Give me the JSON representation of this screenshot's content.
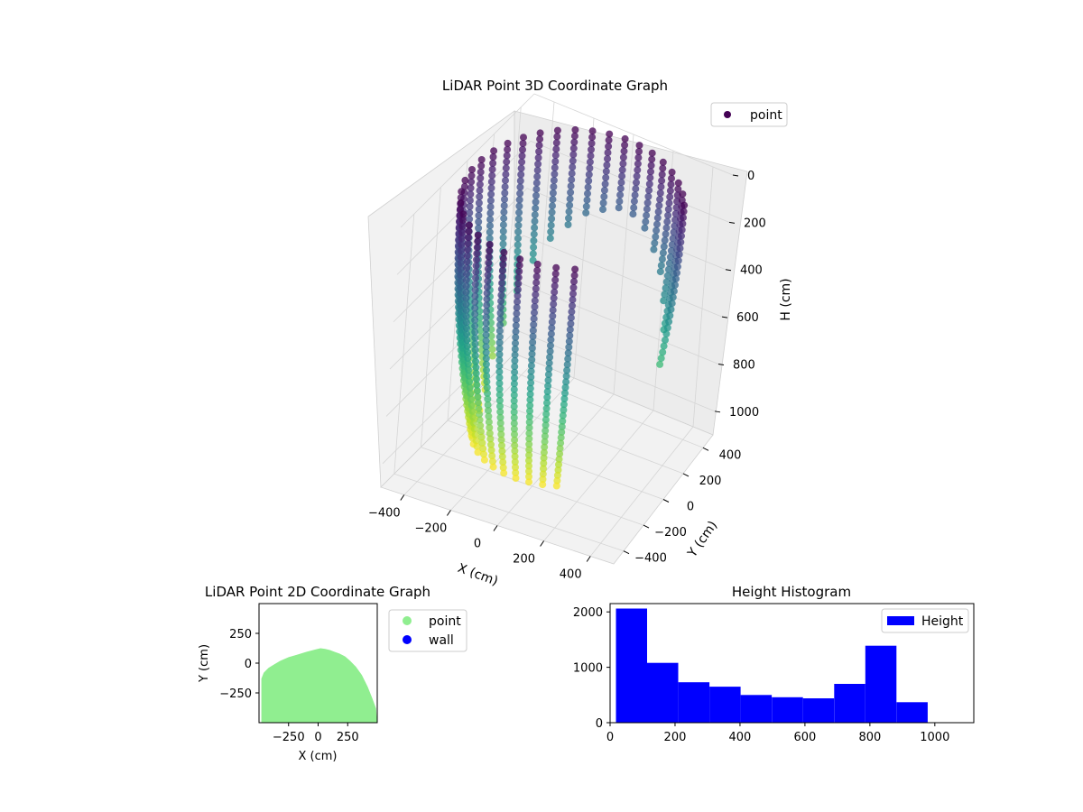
{
  "chart_data": [
    {
      "type": "scatter",
      "projection": "3d",
      "title": "LiDAR Point 3D Coordinate Graph",
      "xlabel": "X (cm)",
      "ylabel": "Y (cm)",
      "zlabel": "H (cm)",
      "x_ticks": [
        -400,
        -200,
        0,
        200,
        400
      ],
      "y_ticks": [
        -400,
        -200,
        0,
        200,
        400
      ],
      "z_ticks": [
        0,
        200,
        400,
        600,
        800,
        1000
      ],
      "xlim": [
        -500,
        500
      ],
      "ylim": [
        -500,
        500
      ],
      "zlim": [
        0,
        1100
      ],
      "z_inverted": true,
      "colormap": "viridis",
      "legend": {
        "entries": [
          "point"
        ],
        "placement": "top-right"
      },
      "series": [
        {
          "name": "point",
          "description_values": {
            "x_range": [
              -480,
              480
            ],
            "y_range": [
              -480,
              480
            ],
            "h_range": [
              0,
              1000
            ]
          }
        }
      ],
      "grid": true
    },
    {
      "type": "scatter",
      "title": "LiDAR Point 2D Coordinate Graph",
      "xlabel": "X (cm)",
      "ylabel": "Y (cm)",
      "x_ticks": [
        -250,
        0,
        250
      ],
      "y_ticks": [
        -250,
        0,
        250
      ],
      "xlim": [
        -500,
        500
      ],
      "ylim": [
        -500,
        500
      ],
      "legend": {
        "entries": [
          "point",
          "wall"
        ],
        "placement": "outside-right"
      },
      "series": [
        {
          "name": "point",
          "color": "#90ee90",
          "outline": [
            [
              -480,
              -500
            ],
            [
              -480,
              -130
            ],
            [
              -460,
              -80
            ],
            [
              -420,
              -40
            ],
            [
              -370,
              -10
            ],
            [
              -320,
              20
            ],
            [
              -250,
              50
            ],
            [
              -180,
              70
            ],
            [
              -100,
              95
            ],
            [
              -20,
              115
            ],
            [
              20,
              125
            ],
            [
              60,
              120
            ],
            [
              100,
              110
            ],
            [
              140,
              95
            ],
            [
              180,
              80
            ],
            [
              230,
              55
            ],
            [
              270,
              20
            ],
            [
              320,
              -30
            ],
            [
              370,
              -100
            ],
            [
              420,
              -200
            ],
            [
              460,
              -300
            ],
            [
              490,
              -380
            ],
            [
              500,
              -500
            ]
          ]
        },
        {
          "name": "wall",
          "color": "#0000ff",
          "values": []
        }
      ],
      "grid": false
    },
    {
      "type": "bar",
      "title": "Height Histogram",
      "x_ticks": [
        0,
        200,
        400,
        600,
        800,
        1000
      ],
      "y_ticks": [
        0,
        1000,
        2000
      ],
      "xlim": [
        0,
        1120
      ],
      "ylim": [
        0,
        2150
      ],
      "bin_edges": [
        18,
        114,
        210,
        306,
        402,
        498,
        594,
        690,
        786,
        882,
        978
      ],
      "values": [
        2060,
        1080,
        730,
        650,
        500,
        460,
        440,
        700,
        1390,
        370
      ],
      "color": "#0000ff",
      "legend": {
        "entries": [
          "Height"
        ],
        "placement": "top-right"
      },
      "grid": false
    }
  ]
}
